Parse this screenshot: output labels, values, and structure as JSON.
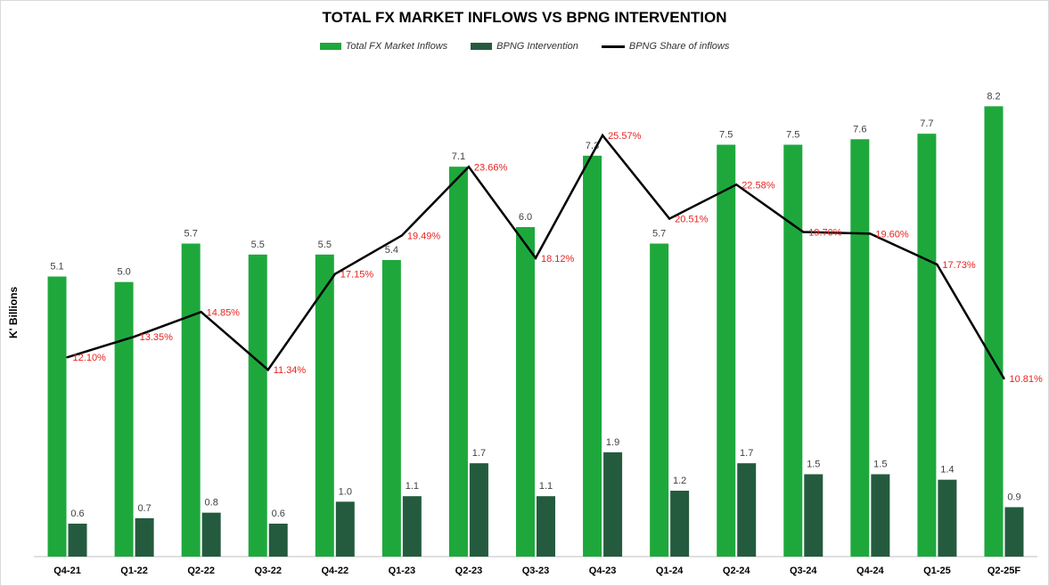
{
  "chart_data": {
    "type": "bar",
    "title": "TOTAL FX MARKET INFLOWS VS BPNG INTERVENTION",
    "ylabel": "K' Billions",
    "categories": [
      "Q4-21",
      "Q1-22",
      "Q2-22",
      "Q3-22",
      "Q4-22",
      "Q1-23",
      "Q2-23",
      "Q3-23",
      "Q4-23",
      "Q1-24",
      "Q2-24",
      "Q3-24",
      "Q4-24",
      "Q1-25",
      "Q2-25F"
    ],
    "series": [
      {
        "name": "Total FX Market Inflows",
        "kind": "bar",
        "color": "#1ea83c",
        "values": [
          5.1,
          5.0,
          5.7,
          5.5,
          5.5,
          5.4,
          7.1,
          6.0,
          7.3,
          5.7,
          7.5,
          7.5,
          7.6,
          7.7,
          8.2
        ],
        "labels": [
          "5.1",
          "5.0",
          "5.7",
          "5.5",
          "5.5",
          "5.4",
          "7.1",
          "6.0",
          "7.3",
          "5.7",
          "7.5",
          "7.5",
          "7.6",
          "7.7",
          "8.2"
        ]
      },
      {
        "name": "BPNG Intervention",
        "kind": "bar",
        "color": "#245b3f",
        "values": [
          0.6,
          0.7,
          0.8,
          0.6,
          1.0,
          1.1,
          1.7,
          1.1,
          1.9,
          1.2,
          1.7,
          1.5,
          1.5,
          1.4,
          0.9
        ],
        "labels": [
          "0.6",
          "0.7",
          "0.8",
          "0.6",
          "1.0",
          "1.1",
          "1.7",
          "1.1",
          "1.9",
          "1.2",
          "1.7",
          "1.5",
          "1.5",
          "1.4",
          "0.9"
        ]
      },
      {
        "name": "BPNG Share of inflows",
        "kind": "line",
        "color": "#000000",
        "label_color": "#e8231f",
        "values": [
          12.1,
          13.35,
          14.85,
          11.34,
          17.15,
          19.49,
          23.66,
          18.12,
          25.57,
          20.51,
          22.58,
          19.7,
          19.6,
          17.73,
          10.81
        ],
        "labels": [
          "12.10%",
          "13.35%",
          "14.85%",
          "11.34%",
          "17.15%",
          "19.49%",
          "23.66%",
          "18.12%",
          "25.57%",
          "20.51%",
          "22.58%",
          "19.70%",
          "19.60%",
          "17.73%",
          "10.81%"
        ]
      }
    ],
    "ylim": [
      0,
      9
    ],
    "y2lim": [
      0,
      30
    ],
    "grid": false,
    "legend_position": "top"
  }
}
